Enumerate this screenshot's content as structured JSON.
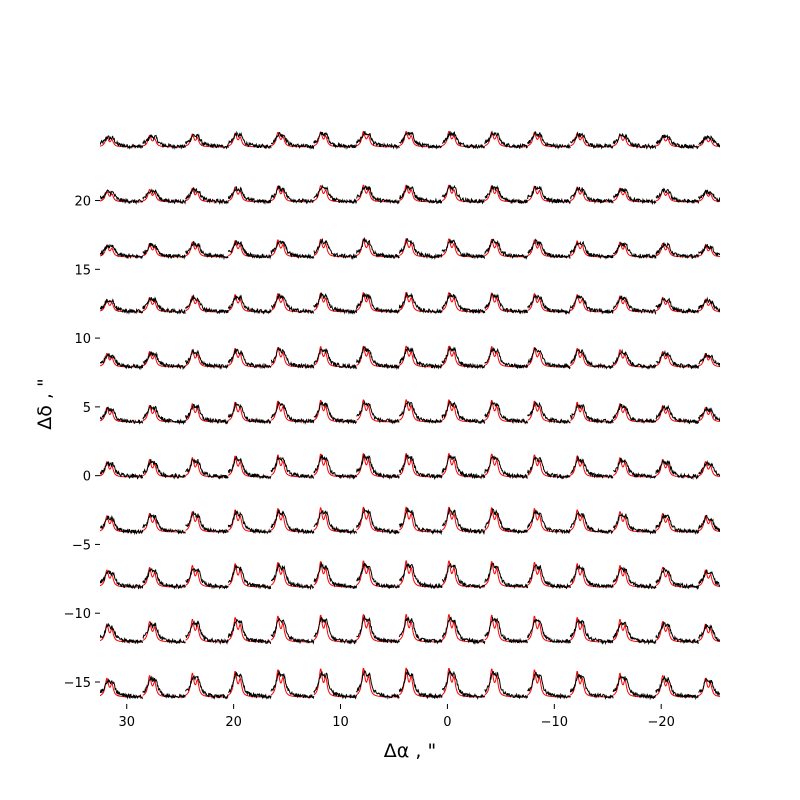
{
  "chart_data": {
    "type": "line",
    "title": "",
    "xlabel": "Δα , \"",
    "ylabel": "Δδ , \"",
    "xlim": [
      32.5,
      -25.5
    ],
    "ylim": [
      -16.6,
      27.6
    ],
    "x_ticks": [
      30,
      20,
      10,
      0,
      -10,
      -20
    ],
    "x_tick_labels": [
      "30",
      "20",
      "10",
      "0",
      "−10",
      "−20"
    ],
    "y_ticks": [
      20,
      15,
      10,
      5,
      0,
      -5,
      -10,
      -15
    ],
    "y_tick_labels": [
      "20",
      "15",
      "10",
      "5",
      "0",
      "−5",
      "−10",
      "−15"
    ],
    "grid": false,
    "spectrum_grid": {
      "columns_x_start": [
        32.5,
        28.5,
        24.5,
        20.5,
        16.5,
        12.5,
        8.5,
        4.5,
        0.5,
        -3.5,
        -7.5,
        -11.5,
        -15.5,
        -19.5,
        -23.5
      ],
      "column_width": 4,
      "rows_baseline_y": [
        23.9,
        19.9,
        15.9,
        11.9,
        7.9,
        3.9,
        -0.1,
        -4.1,
        -8.1,
        -12.1,
        -16.1
      ],
      "line_1_offset": 0.75,
      "line_2_offset": 1.25,
      "series": [
        {
          "role": "observed",
          "color": "#000000"
        },
        {
          "role": "model",
          "color": "#ff0000"
        }
      ]
    }
  }
}
